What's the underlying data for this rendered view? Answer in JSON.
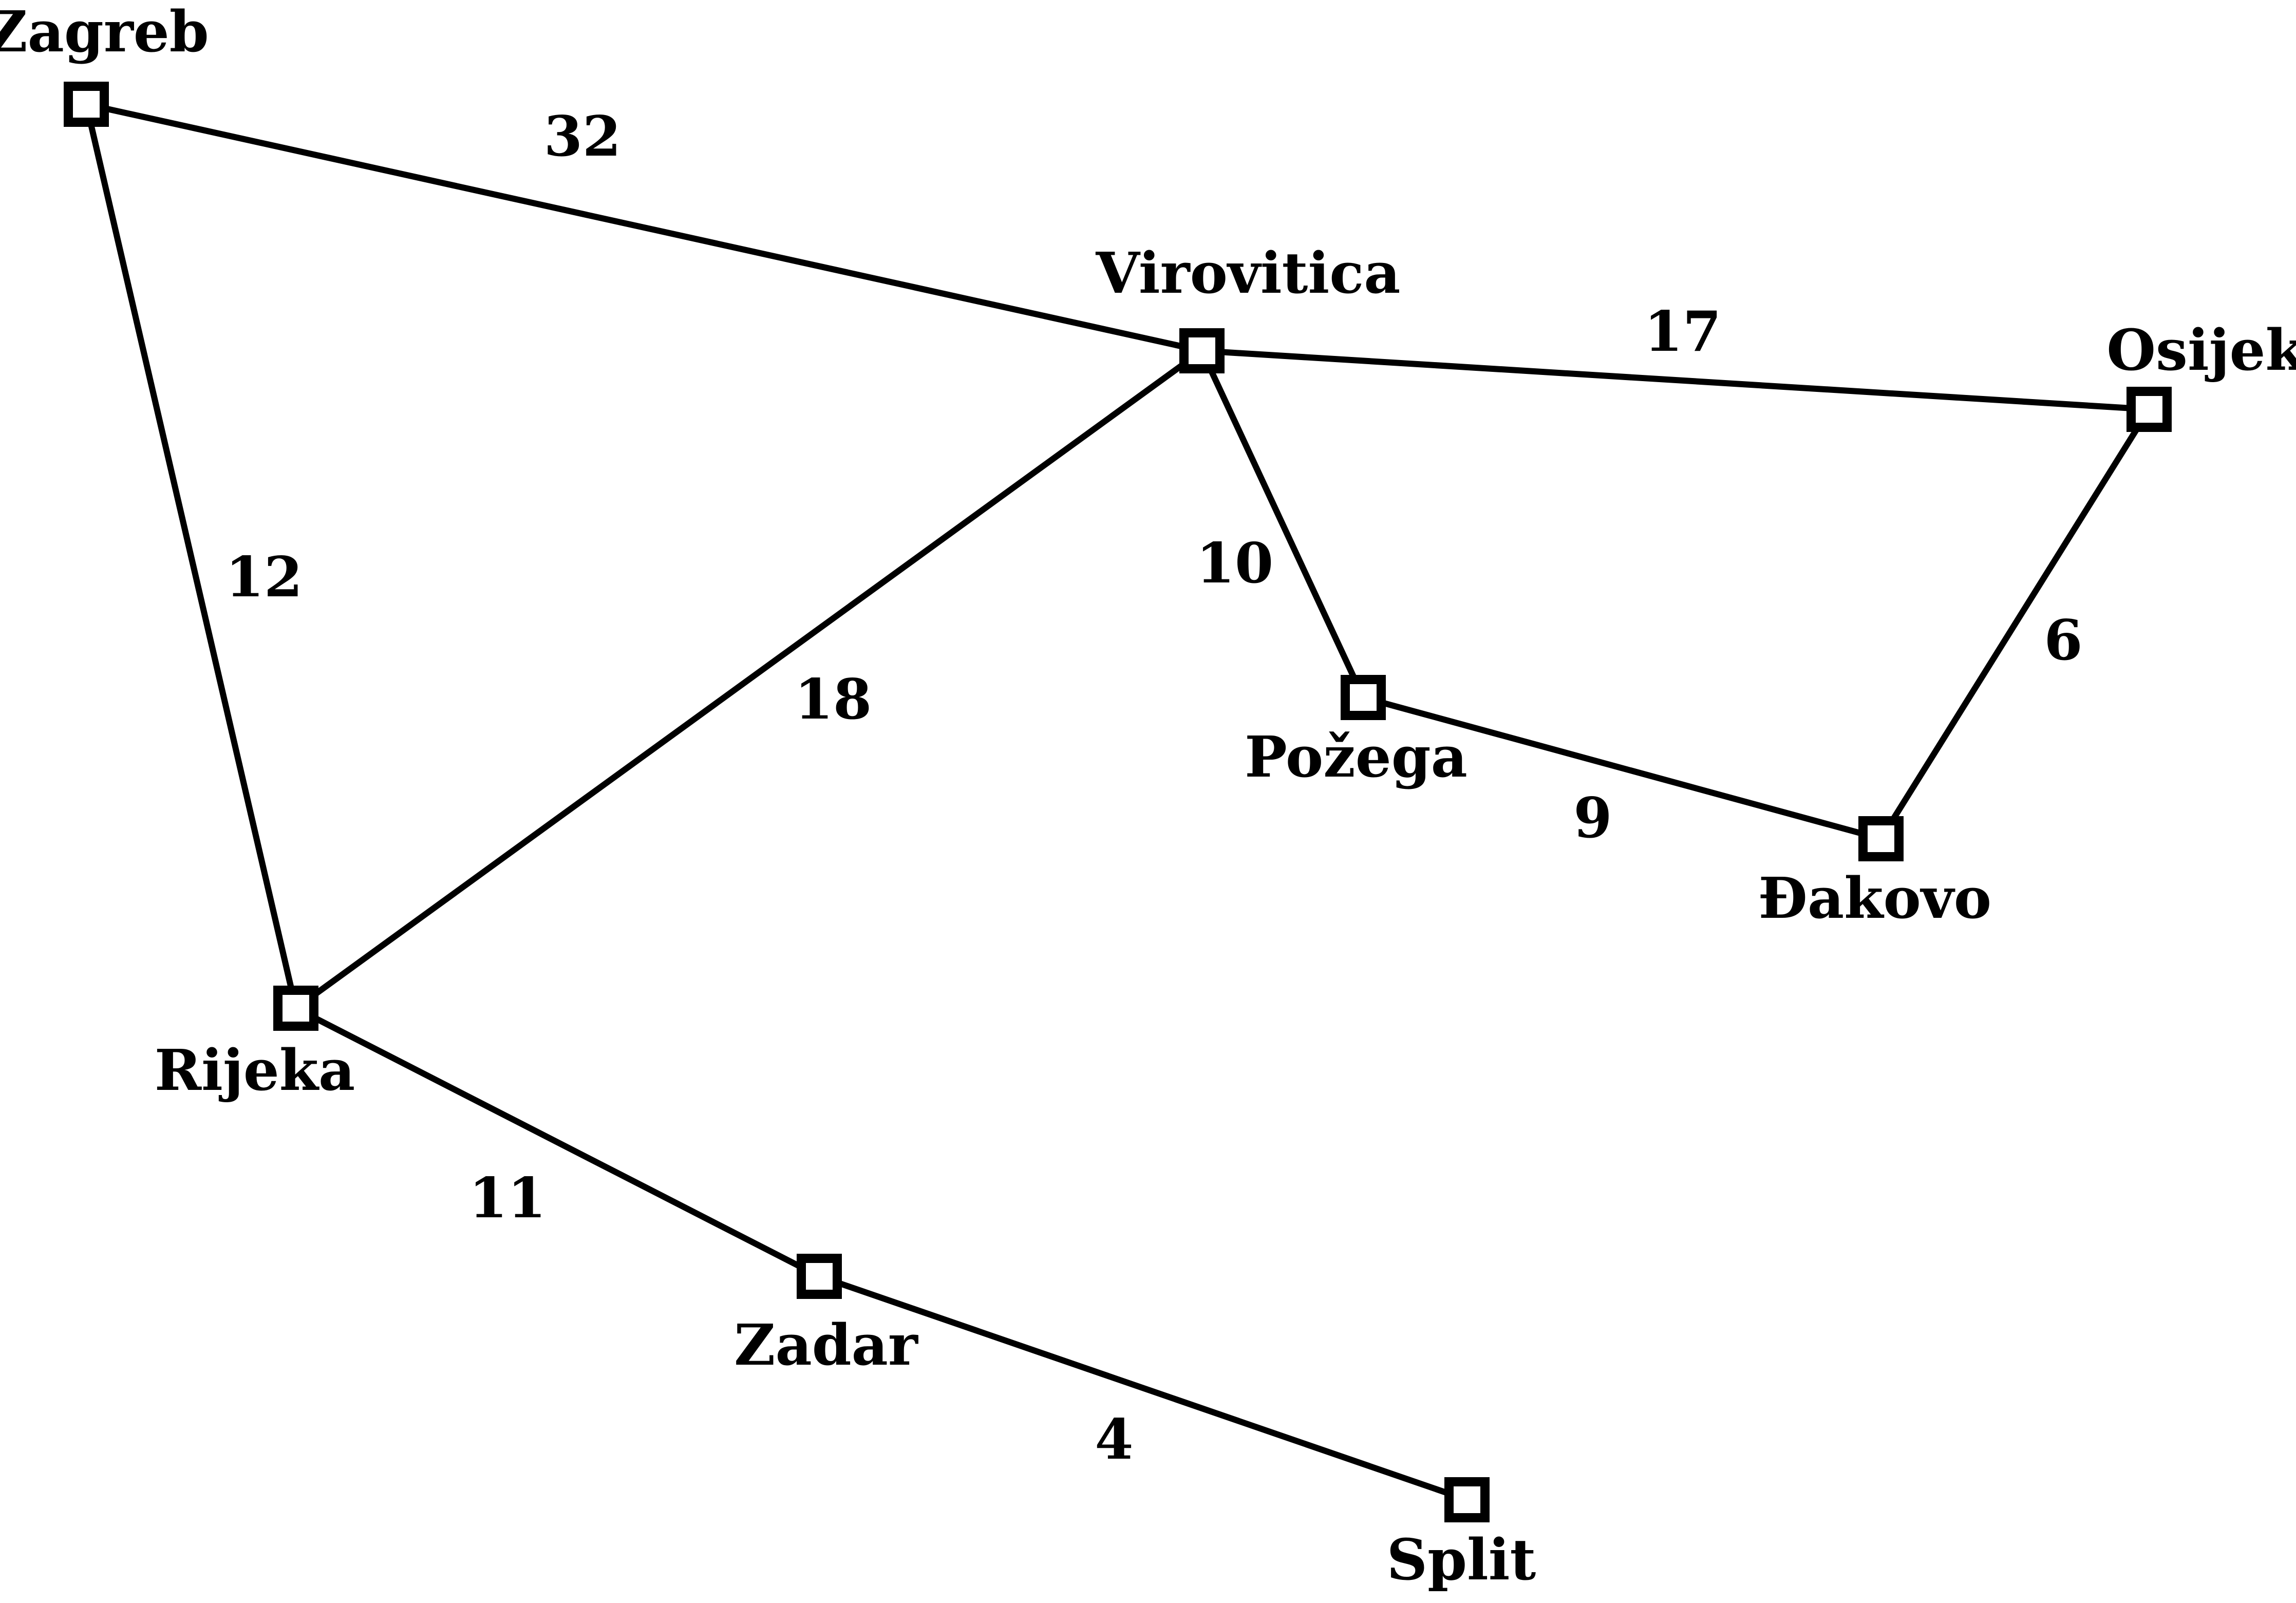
{
  "graph": {
    "nodes": {
      "zagreb": "Zagreb",
      "virovitica": "Virovitica",
      "osijek": "Osijek",
      "pozega": "Požega",
      "dakovo": "Đakovo",
      "rijeka": "Rijeka",
      "zadar": "Zadar",
      "split": "Split"
    },
    "edges": [
      {
        "from": "Zagreb",
        "to": "Virovitica",
        "weight": "32"
      },
      {
        "from": "Virovitica",
        "to": "Osijek",
        "weight": "17"
      },
      {
        "from": "Zagreb",
        "to": "Rijeka",
        "weight": "12"
      },
      {
        "from": "Virovitica",
        "to": "Rijeka",
        "weight": "18"
      },
      {
        "from": "Virovitica",
        "to": "Požega",
        "weight": "10"
      },
      {
        "from": "Osijek",
        "to": "Đakovo",
        "weight": "6"
      },
      {
        "from": "Požega",
        "to": "Đakovo",
        "weight": "9"
      },
      {
        "from": "Rijeka",
        "to": "Zadar",
        "weight": "11"
      },
      {
        "from": "Zadar",
        "to": "Split",
        "weight": "4"
      }
    ]
  }
}
